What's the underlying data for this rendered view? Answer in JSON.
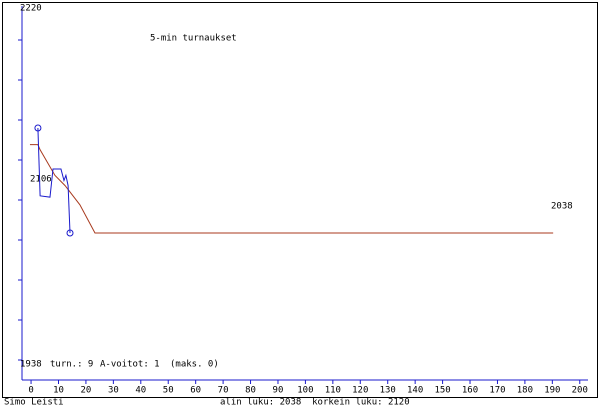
{
  "chart_data": {
    "type": "line",
    "title": "5-min turnaukset",
    "series": [
      {
        "color": "#1a1acc",
        "x": [
          2.5,
          3.3,
          6.9,
          8,
          10.9,
          12,
          12.7,
          13.5,
          14.2
        ],
        "values": [
          2120,
          2067,
          2066,
          2088,
          2088,
          2079,
          2083,
          2075,
          2038
        ]
      },
      {
        "color": "#a83a1e",
        "x": [
          -0.4,
          2.5,
          3.3,
          8.7,
          12.4,
          17.8,
          23.3,
          190.3
        ],
        "values": [
          2107,
          2107,
          2103,
          2083,
          2075,
          2060,
          2038,
          2038
        ]
      }
    ],
    "xlim": [
      -3.3,
      203
    ],
    "xticks": [
      0,
      10,
      20,
      30,
      40,
      50,
      60,
      70,
      80,
      90,
      100,
      110,
      120,
      130,
      140,
      150,
      160,
      170,
      180,
      190,
      200
    ],
    "ylim": [
      1938,
      2220
    ],
    "yticks": [
      1938,
      2220
    ],
    "annotations": [
      "2106",
      "2038"
    ],
    "stats": [
      "turn.: 9",
      "A-voitot: 1",
      "(maks. 0)"
    ],
    "footer": {
      "author": "Simo Leisti",
      "summary": "alin luku: 2038  korkein luku: 2120"
    }
  }
}
